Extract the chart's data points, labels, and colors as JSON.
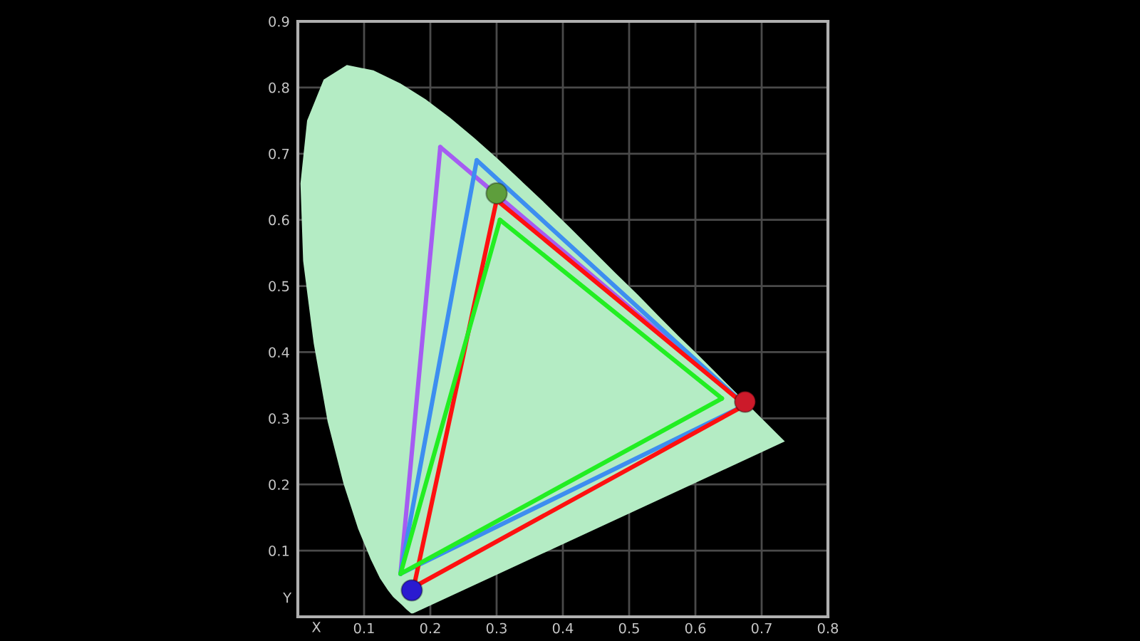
{
  "chart_data": {
    "type": "line",
    "xlabel": "X",
    "ylabel": "Y",
    "xlim": [
      0,
      0.8
    ],
    "ylim": [
      0,
      0.9
    ],
    "xticks": [
      0.1,
      0.2,
      0.3,
      0.4,
      0.5,
      0.6,
      0.7,
      0.8
    ],
    "yticks": [
      0.1,
      0.2,
      0.3,
      0.4,
      0.5,
      0.6,
      0.7,
      0.8,
      0.9
    ],
    "grid": true,
    "series": [
      {
        "type": "area",
        "color": "#b4ecc4",
        "x": [
          0.174,
          0.171,
          0.164,
          0.157,
          0.144,
          0.136,
          0.124,
          0.11,
          0.091,
          0.069,
          0.045,
          0.024,
          0.008,
          0.004,
          0.014,
          0.039,
          0.074,
          0.114,
          0.155,
          0.193,
          0.23,
          0.266,
          0.302,
          0.337,
          0.373,
          0.409,
          0.444,
          0.479,
          0.513,
          0.545,
          0.575,
          0.603,
          0.627,
          0.666,
          0.692,
          0.708,
          0.719,
          0.726,
          0.735
        ],
        "values": [
          0.005,
          0.005,
          0.011,
          0.018,
          0.03,
          0.04,
          0.058,
          0.087,
          0.133,
          0.201,
          0.295,
          0.413,
          0.538,
          0.655,
          0.75,
          0.812,
          0.834,
          0.826,
          0.806,
          0.782,
          0.754,
          0.724,
          0.692,
          0.659,
          0.625,
          0.59,
          0.555,
          0.52,
          0.487,
          0.454,
          0.424,
          0.397,
          0.373,
          0.334,
          0.308,
          0.292,
          0.281,
          0.274,
          0.265
        ]
      },
      {
        "type": "line",
        "color": "#a55cf2",
        "x": [
          0.215,
          0.675
        ],
        "values": [
          0.71,
          0.32
        ]
      },
      {
        "type": "line",
        "color": "#a55cf2",
        "x": [
          0.155,
          0.215
        ],
        "values": [
          0.065,
          0.71
        ]
      },
      {
        "type": "line",
        "color": "#3d8ef0",
        "x": [
          0.27,
          0.675
        ],
        "values": [
          0.69,
          0.32
        ]
      },
      {
        "type": "line",
        "color": "#3d8ef0",
        "x": [
          0.155,
          0.675
        ],
        "values": [
          0.065,
          0.32
        ]
      },
      {
        "type": "line",
        "color": "#3d8ef0",
        "x": [
          0.155,
          0.27
        ],
        "values": [
          0.065,
          0.69
        ]
      },
      {
        "type": "line",
        "color": "#ff1010",
        "x": [
          0.3,
          0.675
        ],
        "values": [
          0.63,
          0.32
        ]
      },
      {
        "type": "line",
        "color": "#ff1010",
        "x": [
          0.175,
          0.675
        ],
        "values": [
          0.045,
          0.32
        ]
      },
      {
        "type": "line",
        "color": "#ff1010",
        "x": [
          0.175,
          0.3
        ],
        "values": [
          0.045,
          0.63
        ]
      },
      {
        "color": "#22ee22",
        "x": [
          0.305,
          0.64
        ],
        "values": [
          0.6,
          0.33
        ]
      },
      {
        "color": "#22ee22",
        "x": [
          0.155,
          0.64
        ],
        "values": [
          0.065,
          0.33
        ]
      },
      {
        "color": "#22ee22",
        "x": [
          0.155,
          0.305
        ],
        "values": [
          0.065,
          0.6
        ]
      },
      {
        "type": "scatter",
        "marker": "circle",
        "x": [
          0.3,
          0.675,
          0.172
        ],
        "values": [
          0.64,
          0.325,
          0.04
        ],
        "colors": [
          "#5e9e3c",
          "#cc1a2a",
          "#2a1ad0"
        ]
      }
    ]
  }
}
